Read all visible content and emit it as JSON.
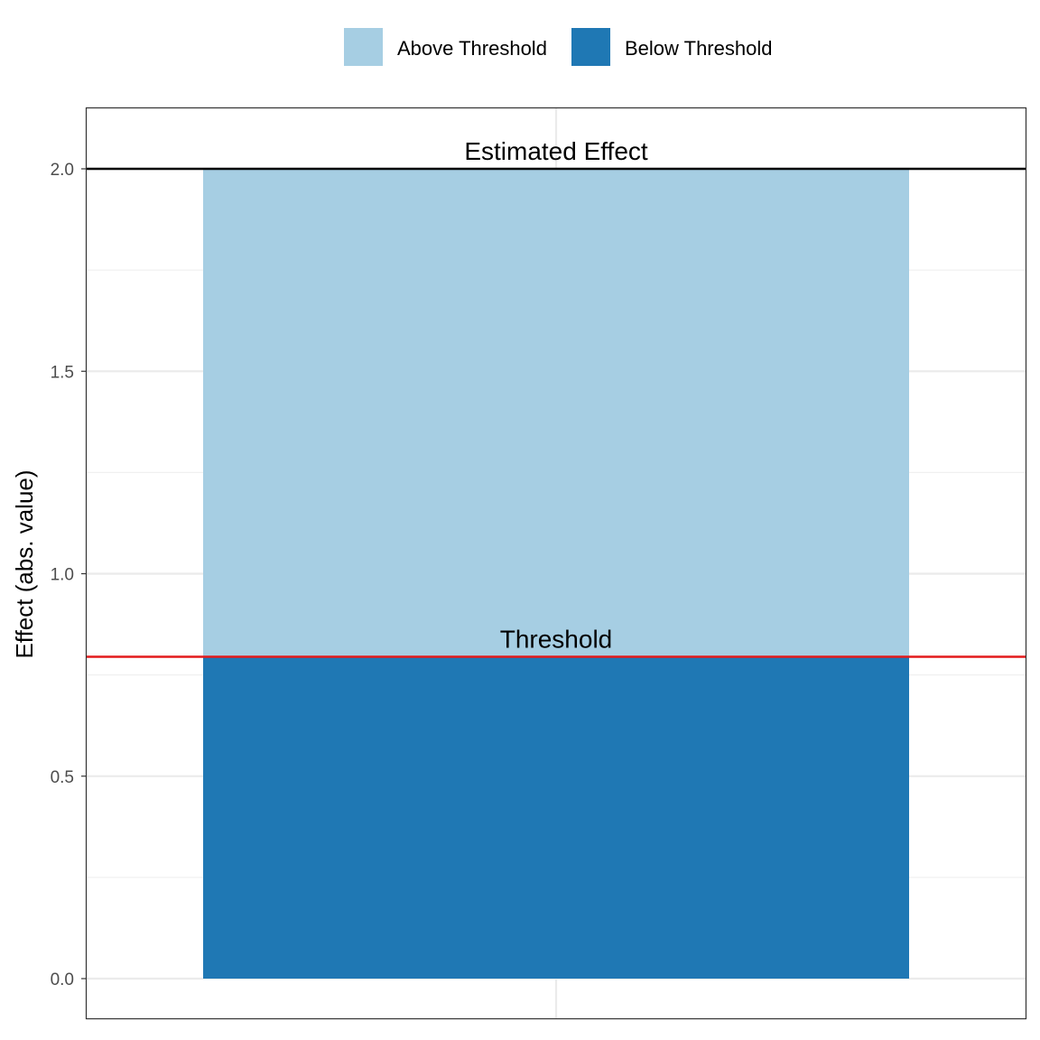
{
  "chart_data": {
    "type": "bar",
    "stacked": true,
    "title": "",
    "xlabel": "",
    "ylabel": "Effect (abs. value)",
    "ylim": [
      -0.1,
      2.15
    ],
    "yticks": [
      0.0,
      0.5,
      1.0,
      1.5,
      2.0
    ],
    "ytick_labels": [
      "0.0",
      "0.5",
      "1.0",
      "1.5",
      "2.0"
    ],
    "grid": true,
    "legend_position": "top",
    "categories": [
      ""
    ],
    "series": [
      {
        "name": "Below Threshold",
        "values": [
          0.795
        ],
        "color": "#1f78b4"
      },
      {
        "name": "Above Threshold",
        "values": [
          1.205
        ],
        "color": "#a6cee3"
      }
    ],
    "legend": [
      {
        "label": "Above Threshold",
        "color": "#a6cee3"
      },
      {
        "label": "Below Threshold",
        "color": "#1f78b4"
      }
    ],
    "reference_lines": [
      {
        "label": "Estimated Effect",
        "value": 2.0,
        "color": "#000000"
      },
      {
        "label": "Threshold",
        "value": 0.795,
        "color": "#e31a1c"
      }
    ]
  }
}
